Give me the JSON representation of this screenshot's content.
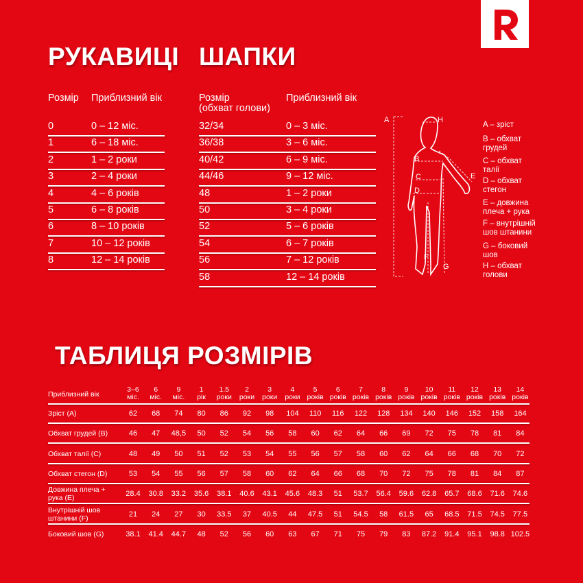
{
  "brand": {
    "logo_letter": "R",
    "logo_color": "#e30613",
    "background": "#e30613"
  },
  "mittens": {
    "title": "РУКАВИЦІ",
    "headers": [
      "Розмір",
      "Приблизний вік"
    ],
    "rows": [
      [
        "0",
        "0 – 12 міс."
      ],
      [
        "1",
        "6 – 18 міс."
      ],
      [
        "2",
        "1 – 2 роки"
      ],
      [
        "3",
        "2 – 4 роки"
      ],
      [
        "4",
        "4 – 6 років"
      ],
      [
        "5",
        "6 – 8 років"
      ],
      [
        "6",
        "8 – 10 років"
      ],
      [
        "7",
        "10 – 12 років"
      ],
      [
        "8",
        "12 – 14 років"
      ]
    ]
  },
  "hats": {
    "title": "ШАПКИ",
    "headers": [
      "Розмір",
      "(обхват голови)",
      "Приблизний вік"
    ],
    "rows": [
      [
        "32/34",
        "0 – 3 міс."
      ],
      [
        "36/38",
        "3 – 6 міс."
      ],
      [
        "40/42",
        "6 – 9 міс."
      ],
      [
        "44/46",
        "9 – 12 міс."
      ],
      [
        "48",
        "1 – 2 роки"
      ],
      [
        "50",
        "3 – 4 роки"
      ],
      [
        "52",
        "5 – 6 років"
      ],
      [
        "54",
        "6 – 7 років"
      ],
      [
        "56",
        "7 – 12 років"
      ],
      [
        "58",
        "12 – 14 років"
      ]
    ]
  },
  "figure": {
    "labels": [
      "A",
      "B",
      "C",
      "D",
      "E",
      "F",
      "G",
      "H"
    ],
    "legend": [
      [
        "A – зріст"
      ],
      [
        "B – обхват",
        "грудей"
      ],
      [
        "C – обхват",
        "талії"
      ],
      [
        "D – обхват",
        "стегон"
      ],
      [
        "E – довжина",
        "плеча + рука"
      ],
      [
        "F – внутрішній",
        "шов штанини"
      ],
      [
        "G – боковий",
        "шов"
      ],
      [
        "H – обхват",
        "голови"
      ]
    ]
  },
  "size_table": {
    "title": "ТАБЛИЦЯ РОЗМІРІВ",
    "corner": "Приблизний вік",
    "columns": [
      [
        "3–6",
        "міс."
      ],
      [
        "6",
        "міс."
      ],
      [
        "9",
        "міс."
      ],
      [
        "1",
        "рік"
      ],
      [
        "1.5",
        "роки"
      ],
      [
        "2",
        "роки"
      ],
      [
        "3",
        "роки"
      ],
      [
        "4",
        "роки"
      ],
      [
        "5",
        "років"
      ],
      [
        "6",
        "років"
      ],
      [
        "7",
        "років"
      ],
      [
        "8",
        "років"
      ],
      [
        "9",
        "років"
      ],
      [
        "10",
        "років"
      ],
      [
        "11",
        "років"
      ],
      [
        "12",
        "років"
      ],
      [
        "13",
        "років"
      ],
      [
        "14",
        "років"
      ]
    ],
    "rows": [
      {
        "label": [
          "Зріст (A)"
        ],
        "values": [
          "62",
          "68",
          "74",
          "80",
          "86",
          "92",
          "98",
          "104",
          "110",
          "116",
          "122",
          "128",
          "134",
          "140",
          "146",
          "152",
          "158",
          "164"
        ]
      },
      {
        "label": [
          "Обхват грудей (B)"
        ],
        "values": [
          "46",
          "47",
          "48,5",
          "50",
          "52",
          "54",
          "56",
          "58",
          "60",
          "62",
          "64",
          "66",
          "69",
          "72",
          "75",
          "78",
          "81",
          "84"
        ]
      },
      {
        "label": [
          "Обхват талії (C)"
        ],
        "values": [
          "48",
          "49",
          "50",
          "51",
          "52",
          "53",
          "54",
          "55",
          "56",
          "57",
          "58",
          "60",
          "62",
          "64",
          "66",
          "68",
          "70",
          "72"
        ]
      },
      {
        "label": [
          "Обхват стегон (D)"
        ],
        "values": [
          "53",
          "54",
          "55",
          "56",
          "57",
          "58",
          "60",
          "62",
          "64",
          "66",
          "68",
          "70",
          "72",
          "75",
          "78",
          "81",
          "84",
          "87"
        ]
      },
      {
        "label": [
          "Довжина плеча +",
          "рука (E)"
        ],
        "values": [
          "28.4",
          "30.8",
          "33.2",
          "35.6",
          "38.1",
          "40.6",
          "43.1",
          "45.6",
          "48.3",
          "51",
          "53.7",
          "56.4",
          "59.6",
          "62.8",
          "65.7",
          "68.6",
          "71.6",
          "74.6"
        ]
      },
      {
        "label": [
          "Внутрішній шов",
          "штанини (F)"
        ],
        "values": [
          "21",
          "24",
          "27",
          "30",
          "33.5",
          "37",
          "40.5",
          "44",
          "47.5",
          "51",
          "54.5",
          "58",
          "61.5",
          "65",
          "68.5",
          "71.5",
          "74.5",
          "77.5"
        ]
      },
      {
        "label": [
          "Боковий шов (G)"
        ],
        "values": [
          "38.1",
          "41.4",
          "44.7",
          "48",
          "52",
          "56",
          "60",
          "63",
          "67",
          "71",
          "75",
          "79",
          "83",
          "87.2",
          "91.4",
          "95.1",
          "98.8",
          "102.5"
        ]
      }
    ]
  }
}
